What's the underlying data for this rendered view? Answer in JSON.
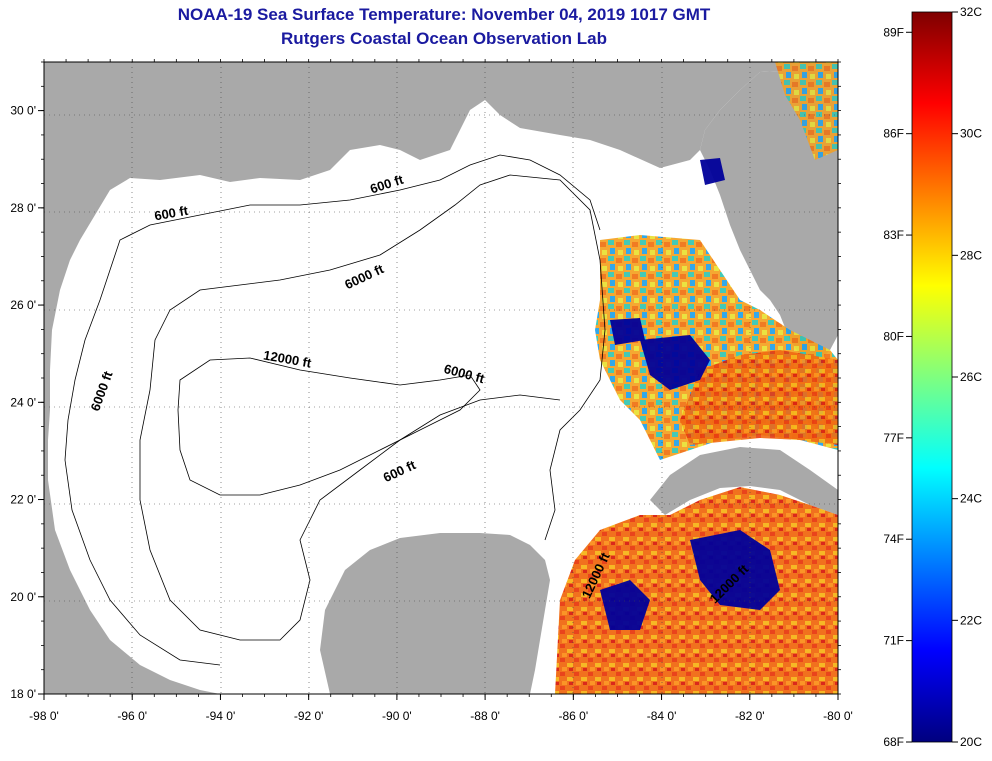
{
  "header": {
    "title": "NOAA-19 Sea Surface Temperature:  November 04, 2019 1017 GMT",
    "subtitle": "Rutgers Coastal Ocean Observation Lab"
  },
  "map": {
    "lon_range": [
      -98,
      -80
    ],
    "lat_range": [
      18,
      31
    ],
    "x_ticks": [
      "-98 0'",
      "-96 0'",
      "-94 0'",
      "-92 0'",
      "-90 0'",
      "-88 0'",
      "-86 0'",
      "-84 0'",
      "-82 0'",
      "-80 0'"
    ],
    "y_ticks": [
      "30 0'",
      "28 0'",
      "26 0'",
      "24 0'",
      "22 0'",
      "20 0'",
      "18 0'"
    ],
    "land_color": "#a9a9a9",
    "ocean_color": "#ffffff",
    "contour_labels": [
      {
        "text": "600 ft",
        "lon": -90.2,
        "lat": 28.4,
        "angle": -18
      },
      {
        "text": "600 ft",
        "lon": -95.1,
        "lat": 27.8,
        "angle": -10
      },
      {
        "text": "6000 ft",
        "lon": -90.7,
        "lat": 26.5,
        "angle": -25
      },
      {
        "text": "12000 ft",
        "lon": -92.5,
        "lat": 24.8,
        "angle": 10
      },
      {
        "text": "6000 ft",
        "lon": -88.5,
        "lat": 24.5,
        "angle": 15
      },
      {
        "text": "6000 ft",
        "lon": -96.6,
        "lat": 24.2,
        "angle": -70
      },
      {
        "text": "600 ft",
        "lon": -89.9,
        "lat": 22.5,
        "angle": -25
      },
      {
        "text": "12000 ft",
        "lon": -85.4,
        "lat": 20.4,
        "angle": -65
      },
      {
        "text": "12000 ft",
        "lon": -82.4,
        "lat": 20.2,
        "angle": -45
      }
    ]
  },
  "colorbar": {
    "celsius_labels": [
      "32C",
      "30C",
      "28C",
      "26C",
      "24C",
      "22C",
      "20C"
    ],
    "fahrenheit_labels": [
      "89F",
      "86F",
      "83F",
      "80F",
      "77F",
      "74F",
      "71F",
      "68F"
    ],
    "colors": [
      "#00007f",
      "#0000ff",
      "#007fff",
      "#00ffff",
      "#7fff7f",
      "#ffff00",
      "#ff7f00",
      "#ff0000",
      "#7f0000"
    ]
  }
}
